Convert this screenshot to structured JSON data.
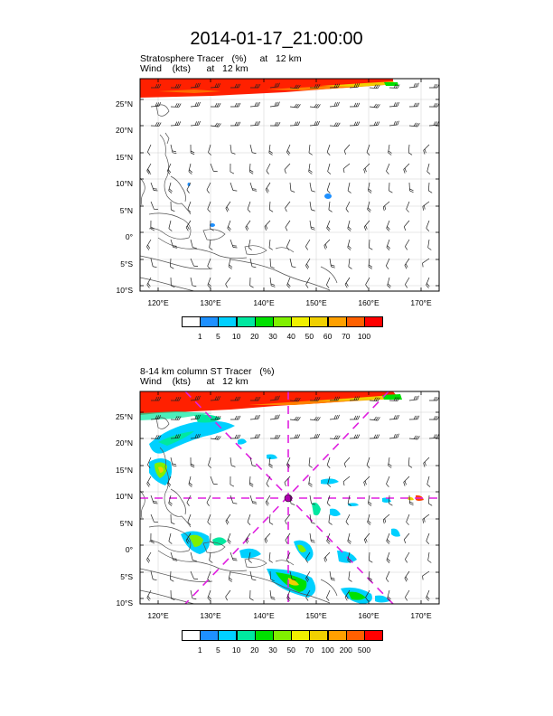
{
  "title": "2014-01-17_21:00:00",
  "panels": [
    {
      "id": "top",
      "title_line1": "Stratosphere Tracer   (%)     at   12 km",
      "title_line2": "Wind    (kts)      at   12 km",
      "lat_labels": [
        "25°N",
        "20°N",
        "15°N",
        "10°N",
        "5°N",
        "0°",
        "5°S",
        "10°S"
      ],
      "lon_labels": [
        "120°E",
        "130°E",
        "140°E",
        "150°E",
        "160°E",
        "170°E"
      ],
      "colorbar": {
        "labels": [
          "1",
          "5",
          "10",
          "20",
          "30",
          "40",
          "50",
          "60",
          "70",
          "100"
        ],
        "colors": [
          "#ffffff",
          "#1e90ff",
          "#00d0ff",
          "#00e8a0",
          "#00e000",
          "#80f000",
          "#f0f000",
          "#f0d000",
          "#ffa000",
          "#ff6000",
          "#ff0000"
        ]
      }
    },
    {
      "id": "bottom",
      "title_line1": "8-14 km column ST Tracer   (%)",
      "title_line2": "Wind    (kts)      at   12 km",
      "lat_labels": [
        "25°N",
        "20°N",
        "15°N",
        "10°N",
        "5°N",
        "0°",
        "5°S",
        "10°S"
      ],
      "lon_labels": [
        "120°E",
        "130°E",
        "140°E",
        "150°E",
        "160°E",
        "170°E"
      ],
      "colorbar": {
        "labels": [
          "1",
          "5",
          "10",
          "20",
          "30",
          "50",
          "70",
          "100",
          "200",
          "500"
        ],
        "colors": [
          "#ffffff",
          "#1e90ff",
          "#00d0ff",
          "#00e8a0",
          "#00e000",
          "#80f000",
          "#f0f000",
          "#f0d000",
          "#ffa000",
          "#ff6000",
          "#ff0000"
        ]
      }
    }
  ]
}
